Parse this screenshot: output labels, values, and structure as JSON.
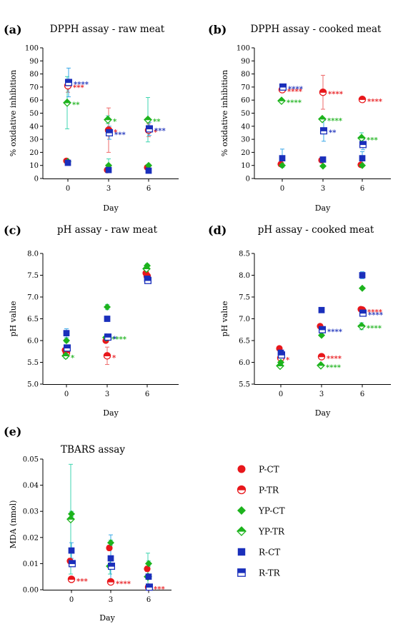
{
  "colors": {
    "P": "#e8171b",
    "YP": "#1db31d",
    "R": "#1a2fbb",
    "eP": "#ee6a6a",
    "eYP": "#3fd5b0",
    "eR": "#3aa8e8"
  },
  "legend": [
    {
      "name": "P-CT",
      "group": "P",
      "marker": "circle",
      "fill": "full"
    },
    {
      "name": "P-TR",
      "group": "P",
      "marker": "circle",
      "fill": "half"
    },
    {
      "name": "YP-CT",
      "group": "YP",
      "marker": "diamond",
      "fill": "full"
    },
    {
      "name": "YP-TR",
      "group": "YP",
      "marker": "diamond",
      "fill": "half"
    },
    {
      "name": "R-CT",
      "group": "R",
      "marker": "square",
      "fill": "full"
    },
    {
      "name": "R-TR",
      "group": "R",
      "marker": "square",
      "fill": "half"
    }
  ],
  "chart_data": [
    {
      "id": "a",
      "label": "(a)",
      "type": "scatter",
      "title": "DPPH assay - raw meat",
      "xlabel": "Day",
      "ylabel": "% oxidative inhibition",
      "x": [
        0,
        3,
        6
      ],
      "ylim": [
        0,
        100
      ],
      "yticks": [
        0,
        10,
        20,
        30,
        40,
        50,
        60,
        70,
        80,
        90,
        100
      ],
      "grid": false,
      "series": [
        {
          "name": "P-CT",
          "values": [
            13.5,
            6.5,
            8.5
          ],
          "err": [
            1,
            1,
            1
          ],
          "stars": [
            "",
            "",
            ""
          ]
        },
        {
          "name": "P-TR",
          "values": [
            71,
            37,
            37
          ],
          "err": [
            5,
            17,
            5
          ],
          "stars": [
            "***",
            "*",
            "*"
          ]
        },
        {
          "name": "YP-CT",
          "values": [
            13,
            10,
            10
          ],
          "err": [
            1,
            5,
            1
          ],
          "stars": [
            "",
            "",
            ""
          ]
        },
        {
          "name": "YP-TR",
          "values": [
            58,
            45,
            45
          ],
          "err": [
            20,
            3,
            17
          ],
          "stars": [
            "**",
            "*",
            "**"
          ]
        },
        {
          "name": "R-CT",
          "values": [
            12,
            6.5,
            6
          ],
          "err": [
            1,
            1,
            1
          ],
          "stars": [
            "",
            "",
            ""
          ]
        },
        {
          "name": "R-TR",
          "values": [
            73.5,
            35,
            38
          ],
          "err": [
            11,
            5,
            5
          ],
          "stars": [
            "****",
            "***",
            "***"
          ]
        }
      ]
    },
    {
      "id": "b",
      "label": "(b)",
      "type": "scatter",
      "title": "DPPH assay - cooked meat",
      "xlabel": "Day",
      "ylabel": "% oxidative inhibition",
      "x": [
        0,
        3,
        6
      ],
      "ylim": [
        0,
        100
      ],
      "yticks": [
        0,
        10,
        20,
        30,
        40,
        50,
        60,
        70,
        80,
        90,
        100
      ],
      "grid": false,
      "series": [
        {
          "name": "P-CT",
          "values": [
            11,
            14,
            10.5
          ],
          "err": [
            1,
            1,
            1
          ],
          "stars": [
            "",
            "",
            ""
          ]
        },
        {
          "name": "P-TR",
          "values": [
            68,
            66,
            60.5
          ],
          "err": [
            1,
            13,
            1
          ],
          "stars": [
            "****",
            "****",
            "****"
          ]
        },
        {
          "name": "YP-CT",
          "values": [
            10,
            9.5,
            10
          ],
          "err": [
            1,
            1,
            1
          ],
          "stars": [
            "",
            "",
            ""
          ]
        },
        {
          "name": "YP-TR",
          "values": [
            59.5,
            45.5,
            31
          ],
          "err": [
            1,
            1,
            4
          ],
          "stars": [
            "****",
            "****",
            "***"
          ]
        },
        {
          "name": "R-CT",
          "values": [
            15.5,
            14.5,
            15.5
          ],
          "err": [
            7,
            1,
            5
          ],
          "stars": [
            "",
            "",
            ""
          ]
        },
        {
          "name": "R-TR",
          "values": [
            70,
            36.5,
            26
          ],
          "err": [
            1,
            8,
            4
          ],
          "stars": [
            "****",
            "**",
            ""
          ]
        }
      ]
    },
    {
      "id": "c",
      "label": "(c)",
      "type": "scatter",
      "title": "pH assay - raw meat",
      "xlabel": "Day",
      "ylabel": "pH value",
      "x": [
        0,
        3,
        6
      ],
      "ylim": [
        5.0,
        8.0
      ],
      "yticks": [
        5.0,
        5.5,
        6.0,
        6.5,
        7.0,
        7.5,
        8.0
      ],
      "grid": false,
      "series": [
        {
          "name": "P-CT",
          "values": [
            5.78,
            6.0,
            7.55
          ],
          "err": [
            0.04,
            0.04,
            0.04
          ],
          "stars": [
            "",
            "",
            ""
          ]
        },
        {
          "name": "P-TR",
          "values": [
            5.72,
            5.65,
            7.48
          ],
          "err": [
            0.04,
            0.2,
            0.04
          ],
          "stars": [
            "",
            "*",
            ""
          ]
        },
        {
          "name": "YP-CT",
          "values": [
            6.0,
            6.77,
            7.72
          ],
          "err": [
            0.04,
            0.06,
            0.04
          ],
          "stars": [
            "",
            "",
            ""
          ]
        },
        {
          "name": "YP-TR",
          "values": [
            5.65,
            6.07,
            7.65
          ],
          "err": [
            0.06,
            0.06,
            0.06
          ],
          "stars": [
            "*",
            "****",
            ""
          ]
        },
        {
          "name": "R-CT",
          "values": [
            6.17,
            6.5,
            7.42
          ],
          "err": [
            0.1,
            0.06,
            0.06
          ],
          "stars": [
            "",
            "",
            ""
          ]
        },
        {
          "name": "R-TR",
          "values": [
            5.83,
            6.08,
            7.38
          ],
          "err": [
            0.06,
            0.06,
            0.06
          ],
          "stars": [
            "",
            "*",
            ""
          ]
        }
      ]
    },
    {
      "id": "d",
      "label": "(d)",
      "type": "scatter",
      "title": "pH assay - cooked meat",
      "xlabel": "Day",
      "ylabel": "pH value",
      "x": [
        0,
        3,
        6
      ],
      "ylim": [
        5.5,
        8.5
      ],
      "yticks": [
        5.5,
        6.0,
        6.5,
        7.0,
        7.5,
        8.0,
        8.5
      ],
      "grid": false,
      "series": [
        {
          "name": "P-CT",
          "values": [
            6.32,
            6.83,
            7.22
          ],
          "err": [
            0.03,
            0.03,
            0.03
          ],
          "stars": [
            "",
            "",
            ""
          ]
        },
        {
          "name": "P-TR",
          "values": [
            6.1,
            6.13,
            7.2
          ],
          "err": [
            0.03,
            0.03,
            0.03
          ],
          "stars": [
            "*",
            "****",
            "****"
          ]
        },
        {
          "name": "YP-CT",
          "values": [
            6.0,
            6.62,
            7.7
          ],
          "err": [
            0.03,
            0.03,
            0.03
          ],
          "stars": [
            "",
            "",
            ""
          ]
        },
        {
          "name": "YP-TR",
          "values": [
            5.92,
            5.93,
            6.83
          ],
          "err": [
            0.03,
            0.03,
            0.08
          ],
          "stars": [
            "",
            "****",
            "****"
          ]
        },
        {
          "name": "R-CT",
          "values": [
            6.22,
            7.2,
            8.0
          ],
          "err": [
            0.03,
            0.03,
            0.08
          ],
          "stars": [
            "",
            "",
            ""
          ]
        },
        {
          "name": "R-TR",
          "values": [
            6.17,
            6.75,
            7.13
          ],
          "err": [
            0.03,
            0.03,
            0.03
          ],
          "stars": [
            "",
            "****",
            "****"
          ]
        }
      ]
    },
    {
      "id": "e",
      "label": "(e)",
      "type": "scatter",
      "title": "TBARS assay",
      "xlabel": "Day",
      "ylabel": "MDA (nmol)",
      "x": [
        0,
        3,
        6
      ],
      "ylim": [
        0.0,
        0.05
      ],
      "yticks": [
        0.0,
        0.01,
        0.02,
        0.03,
        0.04,
        0.05
      ],
      "grid": false,
      "series": [
        {
          "name": "P-CT",
          "values": [
            0.011,
            0.016,
            0.008
          ],
          "err": [
            0.001,
            0.001,
            0.001
          ],
          "stars": [
            "",
            "",
            ""
          ]
        },
        {
          "name": "P-TR",
          "values": [
            0.004,
            0.003,
            0.001
          ],
          "err": [
            0.001,
            0.001,
            0.0005
          ],
          "stars": [
            "***",
            "****",
            "***"
          ]
        },
        {
          "name": "YP-CT",
          "values": [
            0.029,
            0.018,
            0.01
          ],
          "err": [
            0.001,
            0.001,
            0.001
          ],
          "stars": [
            "",
            "",
            ""
          ]
        },
        {
          "name": "YP-TR",
          "values": [
            0.027,
            0.009,
            0.005
          ],
          "err": [
            0.021,
            0.003,
            0.009
          ],
          "stars": [
            "",
            "",
            ""
          ]
        },
        {
          "name": "R-CT",
          "values": [
            0.015,
            0.012,
            0.005
          ],
          "err": [
            0.003,
            0.009,
            0.001
          ],
          "stars": [
            "",
            "",
            ""
          ]
        },
        {
          "name": "R-TR",
          "values": [
            0.01,
            0.009,
            0.001
          ],
          "err": [
            0.001,
            0.001,
            0.0005
          ],
          "stars": [
            "",
            "",
            ""
          ]
        }
      ]
    }
  ]
}
